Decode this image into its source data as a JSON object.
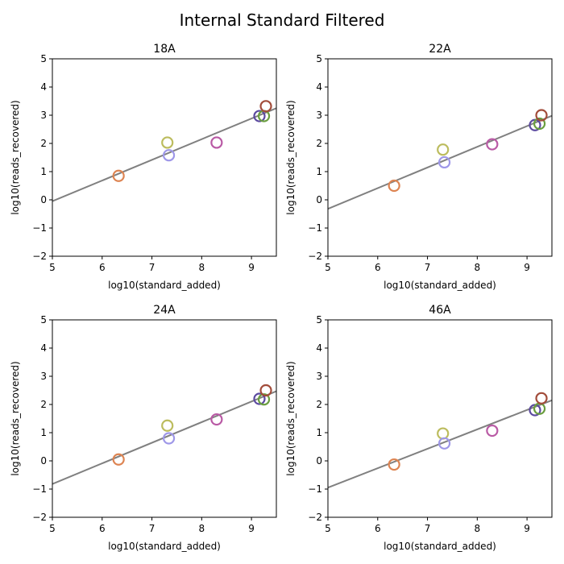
{
  "figure": {
    "title": "Internal Standard Filtered"
  },
  "chart_data": [
    {
      "type": "scatter",
      "title": "18A",
      "xlabel": "log10(standard_added)",
      "ylabel": "log10(reads_recovered)",
      "xlim": [
        5,
        9.5
      ],
      "ylim": [
        -2,
        5
      ],
      "xticks": [
        "5",
        "6",
        "7",
        "8",
        "9"
      ],
      "yticks": [
        "−2",
        "−1",
        "0",
        "1",
        "2",
        "3",
        "4",
        "5"
      ],
      "grid": false,
      "fit_line": {
        "x": [
          5,
          9.5
        ],
        "y": [
          -0.05,
          3.25
        ],
        "color": "#808080"
      },
      "points": [
        {
          "x": 6.33,
          "y": 0.85,
          "color": "#dd8452"
        },
        {
          "x": 7.31,
          "y": 2.03,
          "color": "#bcbc5e"
        },
        {
          "x": 7.34,
          "y": 1.58,
          "color": "#9e97e8"
        },
        {
          "x": 8.3,
          "y": 2.03,
          "color": "#b95aa5"
        },
        {
          "x": 9.16,
          "y": 2.97,
          "color": "#5c4aa0"
        },
        {
          "x": 9.25,
          "y": 2.97,
          "color": "#6a9e3f"
        },
        {
          "x": 9.29,
          "y": 3.32,
          "color": "#a24c3a"
        }
      ]
    },
    {
      "type": "scatter",
      "title": "22A",
      "xlabel": "log10(standard_added)",
      "ylabel": "log10(reads_recovered)",
      "xlim": [
        5,
        9.5
      ],
      "ylim": [
        -2,
        5
      ],
      "xticks": [
        "5",
        "6",
        "7",
        "8",
        "9"
      ],
      "yticks": [
        "−2",
        "−1",
        "0",
        "1",
        "2",
        "3",
        "4",
        "5"
      ],
      "grid": false,
      "fit_line": {
        "x": [
          5,
          9.5
        ],
        "y": [
          -0.32,
          2.98
        ],
        "color": "#808080"
      },
      "points": [
        {
          "x": 6.33,
          "y": 0.5,
          "color": "#dd8452"
        },
        {
          "x": 7.31,
          "y": 1.78,
          "color": "#bcbc5e"
        },
        {
          "x": 7.34,
          "y": 1.33,
          "color": "#9e97e8"
        },
        {
          "x": 8.3,
          "y": 1.97,
          "color": "#b95aa5"
        },
        {
          "x": 9.16,
          "y": 2.65,
          "color": "#5c4aa0"
        },
        {
          "x": 9.25,
          "y": 2.7,
          "color": "#6a9e3f"
        },
        {
          "x": 9.29,
          "y": 3.0,
          "color": "#a24c3a"
        }
      ]
    },
    {
      "type": "scatter",
      "title": "24A",
      "xlabel": "log10(standard_added)",
      "ylabel": "log10(reads_recovered)",
      "xlim": [
        5,
        9.5
      ],
      "ylim": [
        -2,
        5
      ],
      "xticks": [
        "5",
        "6",
        "7",
        "8",
        "9"
      ],
      "yticks": [
        "−2",
        "−1",
        "0",
        "1",
        "2",
        "3",
        "4",
        "5"
      ],
      "grid": false,
      "fit_line": {
        "x": [
          5,
          9.5
        ],
        "y": [
          -0.82,
          2.47
        ],
        "color": "#808080"
      },
      "points": [
        {
          "x": 6.33,
          "y": 0.05,
          "color": "#dd8452"
        },
        {
          "x": 7.31,
          "y": 1.25,
          "color": "#bcbc5e"
        },
        {
          "x": 7.34,
          "y": 0.8,
          "color": "#9e97e8"
        },
        {
          "x": 8.3,
          "y": 1.47,
          "color": "#b95aa5"
        },
        {
          "x": 9.16,
          "y": 2.2,
          "color": "#5c4aa0"
        },
        {
          "x": 9.25,
          "y": 2.18,
          "color": "#6a9e3f"
        },
        {
          "x": 9.29,
          "y": 2.5,
          "color": "#a24c3a"
        }
      ]
    },
    {
      "type": "scatter",
      "title": "46A",
      "xlabel": "log10(standard_added)",
      "ylabel": "log10(reads_recovered)",
      "xlim": [
        5,
        9.5
      ],
      "ylim": [
        -2,
        5
      ],
      "xticks": [
        "5",
        "6",
        "7",
        "8",
        "9"
      ],
      "yticks": [
        "−2",
        "−1",
        "0",
        "1",
        "2",
        "3",
        "4",
        "5"
      ],
      "grid": false,
      "fit_line": {
        "x": [
          5,
          9.5
        ],
        "y": [
          -0.95,
          2.15
        ],
        "color": "#808080"
      },
      "points": [
        {
          "x": 6.33,
          "y": -0.13,
          "color": "#dd8452"
        },
        {
          "x": 7.31,
          "y": 0.97,
          "color": "#bcbc5e"
        },
        {
          "x": 7.34,
          "y": 0.62,
          "color": "#9e97e8"
        },
        {
          "x": 8.3,
          "y": 1.07,
          "color": "#b95aa5"
        },
        {
          "x": 9.16,
          "y": 1.8,
          "color": "#5c4aa0"
        },
        {
          "x": 9.25,
          "y": 1.85,
          "color": "#6a9e3f"
        },
        {
          "x": 9.29,
          "y": 2.22,
          "color": "#a24c3a"
        }
      ]
    }
  ]
}
